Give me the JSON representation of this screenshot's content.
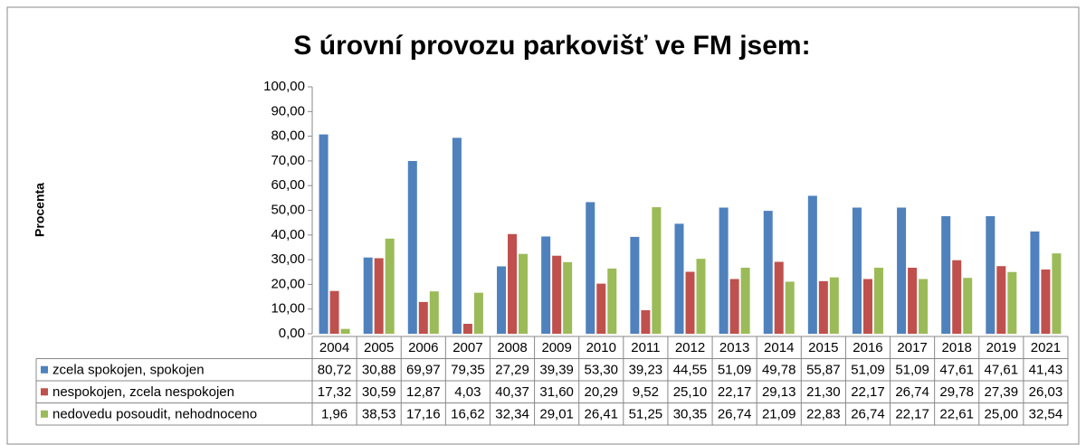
{
  "chart_data": {
    "type": "bar",
    "title": "S úrovní provozu parkovišť ve FM jsem:",
    "y_label": "Procenta",
    "categories": [
      "2004",
      "2005",
      "2006",
      "2007",
      "2008",
      "2009",
      "2010",
      "2011",
      "2012",
      "2013",
      "2014",
      "2015",
      "2016",
      "2017",
      "2018",
      "2019",
      "2021"
    ],
    "series": [
      {
        "name": "zcela spokojen, spokojen",
        "color": "#4f81bd",
        "values": [
          80.72,
          30.88,
          69.97,
          79.35,
          27.29,
          39.39,
          53.3,
          39.23,
          44.55,
          51.09,
          49.78,
          55.87,
          51.09,
          51.09,
          47.61,
          47.61,
          41.43
        ],
        "value_labels": [
          "80,72",
          "30,88",
          "69,97",
          "79,35",
          "27,29",
          "39,39",
          "53,30",
          "39,23",
          "44,55",
          "51,09",
          "49,78",
          "55,87",
          "51,09",
          "51,09",
          "47,61",
          "47,61",
          "41,43"
        ]
      },
      {
        "name": "nespokojen, zcela nespokojen",
        "color": "#c0504d",
        "values": [
          17.32,
          30.59,
          12.87,
          4.03,
          40.37,
          31.6,
          20.29,
          9.52,
          25.1,
          22.17,
          29.13,
          21.3,
          22.17,
          26.74,
          29.78,
          27.39,
          26.03
        ],
        "value_labels": [
          "17,32",
          "30,59",
          "12,87",
          "4,03",
          "40,37",
          "31,60",
          "20,29",
          "9,52",
          "25,10",
          "22,17",
          "29,13",
          "21,30",
          "22,17",
          "26,74",
          "29,78",
          "27,39",
          "26,03"
        ]
      },
      {
        "name": "nedovedu posoudit, nehodnoceno",
        "color": "#9bbb59",
        "values": [
          1.96,
          38.53,
          17.16,
          16.62,
          32.34,
          29.01,
          26.41,
          51.25,
          30.35,
          26.74,
          21.09,
          22.83,
          26.74,
          22.17,
          22.61,
          25.0,
          32.54
        ],
        "value_labels": [
          "1,96",
          "38,53",
          "17,16",
          "16,62",
          "32,34",
          "29,01",
          "26,41",
          "51,25",
          "30,35",
          "26,74",
          "21,09",
          "22,83",
          "26,74",
          "22,17",
          "22,61",
          "25,00",
          "32,54"
        ]
      }
    ],
    "ylim": [
      0,
      100
    ],
    "yticks": [
      {
        "value": 0,
        "label": "0,00"
      },
      {
        "value": 10,
        "label": "10,00"
      },
      {
        "value": 20,
        "label": "20,00"
      },
      {
        "value": 30,
        "label": "30,00"
      },
      {
        "value": 40,
        "label": "40,00"
      },
      {
        "value": 50,
        "label": "50,00"
      },
      {
        "value": 60,
        "label": "60,00"
      },
      {
        "value": 70,
        "label": "70,00"
      },
      {
        "value": 80,
        "label": "80,00"
      },
      {
        "value": 90,
        "label": "90,00"
      },
      {
        "value": 100,
        "label": "100,00"
      }
    ],
    "grid": false
  }
}
